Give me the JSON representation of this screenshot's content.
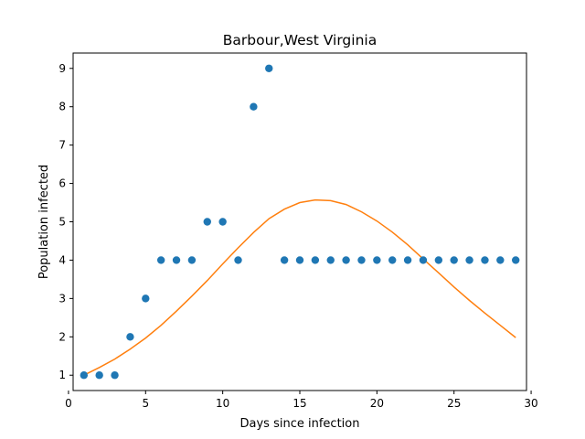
{
  "chart_data": {
    "type": "scatter",
    "title": "Barbour,West Virginia",
    "xlabel": "Days since infection",
    "ylabel": "Population infected",
    "xlim": [
      0.3,
      29.7
    ],
    "ylim": [
      0.6,
      9.4
    ],
    "xticks": [
      0,
      5,
      10,
      15,
      20,
      25,
      30
    ],
    "yticks": [
      1,
      2,
      3,
      4,
      5,
      6,
      7,
      8,
      9
    ],
    "grid": false,
    "series": [
      {
        "kind": "scatter",
        "color": "#1f77b4",
        "x": [
          1,
          2,
          3,
          4,
          5,
          6,
          7,
          8,
          9,
          10,
          11,
          12,
          13,
          14,
          15,
          16,
          17,
          18,
          19,
          20,
          21,
          22,
          23,
          24,
          25,
          26,
          27,
          28,
          29
        ],
        "y": [
          1,
          1,
          1,
          2,
          3,
          4,
          4,
          4,
          5,
          5,
          4,
          8,
          9,
          4,
          4,
          4,
          4,
          4,
          4,
          4,
          4,
          4,
          4,
          4,
          4,
          4,
          4,
          4,
          4
        ]
      },
      {
        "kind": "line",
        "color": "#ff7f0e",
        "x": [
          1,
          2,
          3,
          4,
          5,
          6,
          7,
          8,
          9,
          10,
          11,
          12,
          13,
          14,
          15,
          16,
          17,
          18,
          19,
          20,
          21,
          22,
          23,
          24,
          25,
          26,
          27,
          28,
          29
        ],
        "y": [
          1.0,
          1.2,
          1.42,
          1.68,
          1.97,
          2.3,
          2.67,
          3.06,
          3.47,
          3.9,
          4.32,
          4.72,
          5.08,
          5.33,
          5.5,
          5.57,
          5.55,
          5.45,
          5.26,
          5.02,
          4.73,
          4.4,
          4.03,
          3.67,
          3.3,
          2.95,
          2.62,
          2.3,
          1.98
        ]
      }
    ]
  }
}
